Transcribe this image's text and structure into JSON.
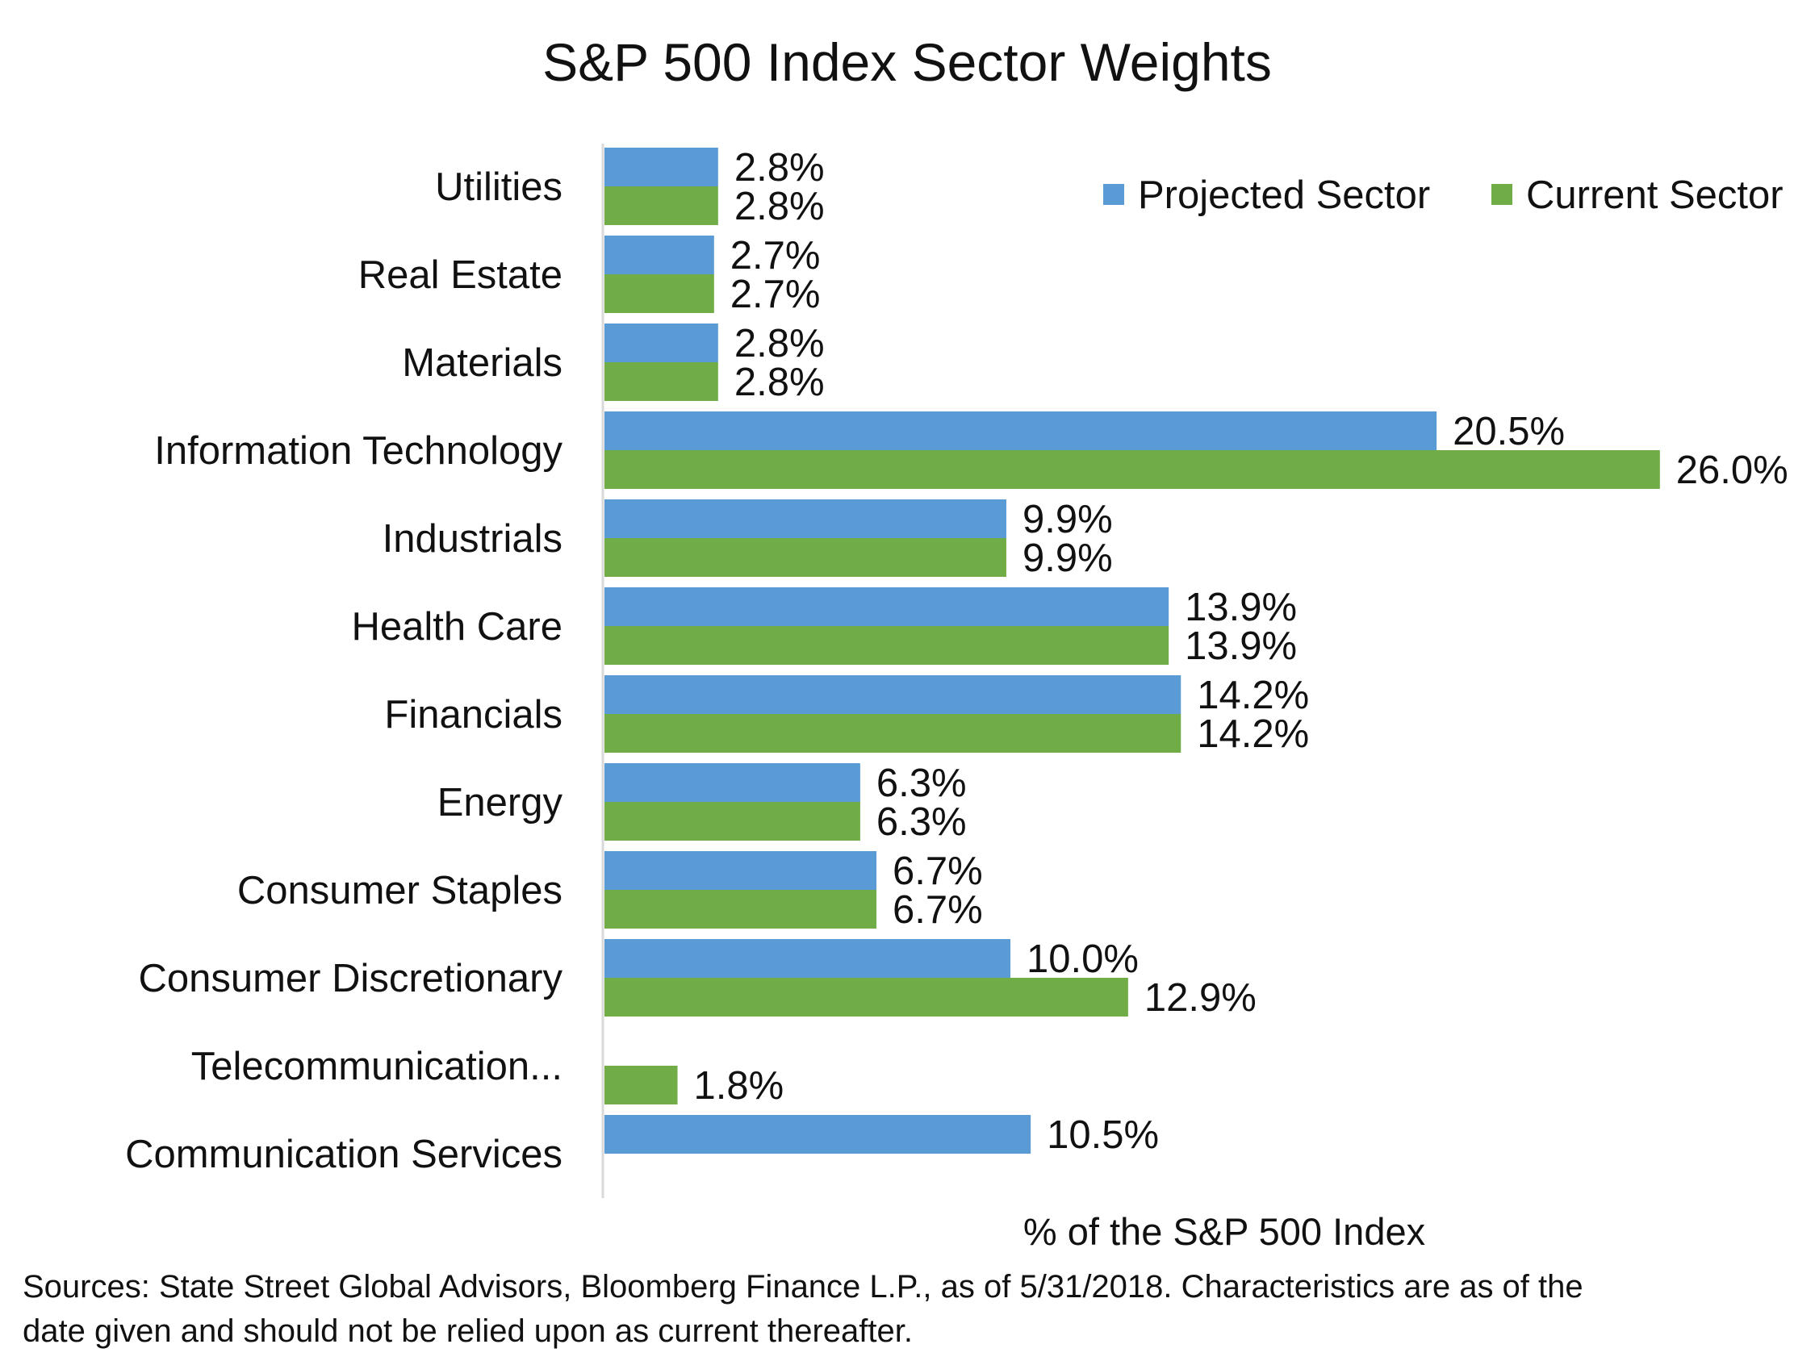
{
  "chart_data": {
    "type": "bar",
    "orientation": "horizontal",
    "title": "S&P 500 Index Sector Weights",
    "xlabel": "% of the S&P 500 Index",
    "ylabel": "",
    "xlim": [
      0,
      27.5
    ],
    "grid": false,
    "legend_position": "top-right",
    "categories": [
      "Utilities",
      "Real Estate",
      "Materials",
      "Information Technology",
      "Industrials",
      "Health Care",
      "Financials",
      "Energy",
      "Consumer Staples",
      "Consumer Discretionary",
      "Telecommunication...",
      "Communication Services"
    ],
    "series": [
      {
        "name": "Projected Sector",
        "color": "#5b9bd5",
        "values": [
          2.8,
          2.7,
          2.8,
          20.5,
          9.9,
          13.9,
          14.2,
          6.3,
          6.7,
          10.0,
          null,
          10.5
        ],
        "labels": [
          "2.8%",
          "2.7%",
          "2.8%",
          "20.5%",
          "9.9%",
          "13.9%",
          "14.2%",
          "6.3%",
          "6.7%",
          "10.0%",
          null,
          "10.5%"
        ]
      },
      {
        "name": "Current Sector",
        "color": "#70ad47",
        "values": [
          2.8,
          2.7,
          2.8,
          26.0,
          9.9,
          13.9,
          14.2,
          6.3,
          6.7,
          12.9,
          1.8,
          null
        ],
        "labels": [
          "2.8%",
          "2.7%",
          "2.8%",
          "26.0%",
          "9.9%",
          "13.9%",
          "14.2%",
          "6.3%",
          "6.7%",
          "12.9%",
          "1.8%",
          null
        ]
      }
    ]
  },
  "colors": {
    "axis": "#d9d9d9",
    "text": "#111111"
  },
  "footer": {
    "source_line1": "Sources: State Street Global Advisors, Bloomberg Finance L.P., as of 5/31/2018. Characteristics are as of the",
    "source_line2": "date given and should not be relied upon as current thereafter."
  }
}
